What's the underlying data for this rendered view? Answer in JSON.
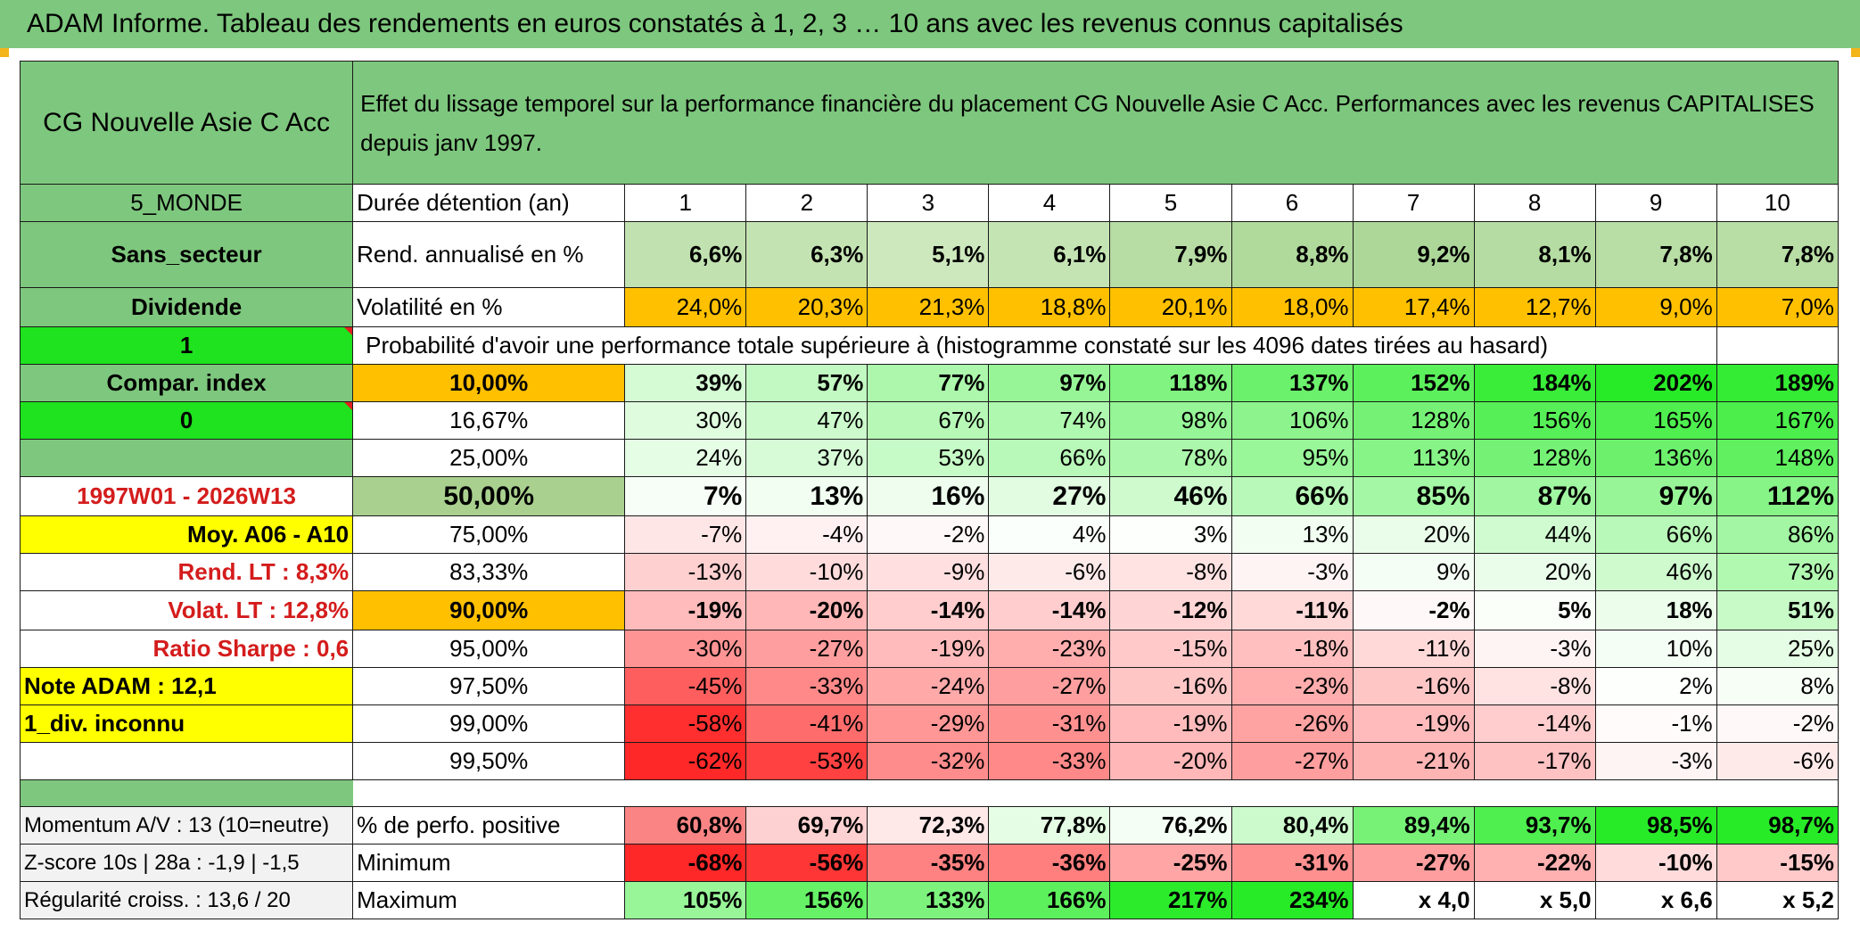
{
  "banner": "ADAM Informe. Tableau des rendements en euros constatés à 1, 2, 3 … 10 ans avec les revenus connus capitalisés",
  "fund_name": "CG Nouvelle Asie C Acc",
  "description": "Effet du lissage temporel sur la performance financière du placement CG Nouvelle Asie C Acc. Performances avec les revenus CAPITALISES depuis janv 1997.",
  "left_labels": {
    "zone": "5_MONDE",
    "secteur": "Sans_secteur",
    "dividende": "Dividende",
    "one": "1",
    "compar": "Compar. index",
    "zero": "0",
    "period": "1997W01 - 2026W13",
    "moy": "Moy. A06 - A10",
    "rend_lt": "Rend. LT :   8,3%",
    "volat_lt": "Volat. LT :   12,8%",
    "sharpe": "Ratio Sharpe :   0,6",
    "note": "Note ADAM : 12,1",
    "div": "1_div. inconnu",
    "momentum": "Momentum A/V : 13 (10=neutre)",
    "zscore": "Z-score 10s | 28a : -1,9 | -1,5",
    "regularite": "Régularité croiss. : 13,6 / 20"
  },
  "duration_label": "Durée détention (an)",
  "durations": [
    "1",
    "2",
    "3",
    "4",
    "5",
    "6",
    "7",
    "8",
    "9",
    "10"
  ],
  "rend_label": "Rend. annualisé en %",
  "rend": [
    "6,6%",
    "6,3%",
    "5,1%",
    "6,1%",
    "7,9%",
    "8,8%",
    "9,2%",
    "8,1%",
    "7,8%",
    "7,8%"
  ],
  "vol_label": "Volatilité en %",
  "vol": [
    "24,0%",
    "20,3%",
    "21,3%",
    "18,8%",
    "20,1%",
    "18,0%",
    "17,4%",
    "12,7%",
    "9,0%",
    "7,0%"
  ],
  "prob_label": "Probabilité d'avoir une performance totale supérieure à (histogramme constaté sur les 4096 dates tirées au hasard)",
  "prob_rows": [
    {
      "p": "10,00%",
      "v": [
        "39%",
        "57%",
        "77%",
        "97%",
        "118%",
        "137%",
        "152%",
        "184%",
        "202%",
        "189%"
      ]
    },
    {
      "p": "16,67%",
      "v": [
        "30%",
        "47%",
        "67%",
        "74%",
        "98%",
        "106%",
        "128%",
        "156%",
        "165%",
        "167%"
      ]
    },
    {
      "p": "25,00%",
      "v": [
        "24%",
        "37%",
        "53%",
        "66%",
        "78%",
        "95%",
        "113%",
        "128%",
        "136%",
        "148%"
      ]
    },
    {
      "p": "50,00%",
      "v": [
        "7%",
        "13%",
        "16%",
        "27%",
        "46%",
        "66%",
        "85%",
        "87%",
        "97%",
        "112%"
      ]
    },
    {
      "p": "75,00%",
      "v": [
        "-7%",
        "-4%",
        "-2%",
        "4%",
        "3%",
        "13%",
        "20%",
        "44%",
        "66%",
        "86%"
      ]
    },
    {
      "p": "83,33%",
      "v": [
        "-13%",
        "-10%",
        "-9%",
        "-6%",
        "-8%",
        "-3%",
        "9%",
        "20%",
        "46%",
        "73%"
      ]
    },
    {
      "p": "90,00%",
      "v": [
        "-19%",
        "-20%",
        "-14%",
        "-14%",
        "-12%",
        "-11%",
        "-2%",
        "5%",
        "18%",
        "51%"
      ]
    },
    {
      "p": "95,00%",
      "v": [
        "-30%",
        "-27%",
        "-19%",
        "-23%",
        "-15%",
        "-18%",
        "-11%",
        "-3%",
        "10%",
        "25%"
      ]
    },
    {
      "p": "97,50%",
      "v": [
        "-45%",
        "-33%",
        "-24%",
        "-27%",
        "-16%",
        "-23%",
        "-16%",
        "-8%",
        "2%",
        "8%"
      ]
    },
    {
      "p": "99,00%",
      "v": [
        "-58%",
        "-41%",
        "-29%",
        "-31%",
        "-19%",
        "-26%",
        "-19%",
        "-14%",
        "-1%",
        "-2%"
      ]
    },
    {
      "p": "99,50%",
      "v": [
        "-62%",
        "-53%",
        "-32%",
        "-33%",
        "-20%",
        "-27%",
        "-21%",
        "-17%",
        "-3%",
        "-6%"
      ]
    }
  ],
  "positive_label": "% de perfo. positive",
  "positive": [
    "60,8%",
    "69,7%",
    "72,3%",
    "77,8%",
    "76,2%",
    "80,4%",
    "89,4%",
    "93,7%",
    "98,5%",
    "98,7%"
  ],
  "minimum_label": "Minimum",
  "minimum": [
    "-68%",
    "-56%",
    "-35%",
    "-36%",
    "-25%",
    "-31%",
    "-27%",
    "-22%",
    "-10%",
    "-15%"
  ],
  "maximum_label": "Maximum",
  "maximum": [
    "105%",
    "156%",
    "133%",
    "166%",
    "217%",
    "234%",
    "x 4,0",
    "x 5,0",
    "x 6,6",
    "x 5,2"
  ],
  "colors": {
    "header_green": "#7ec77e",
    "bright_green": "#1ee31e",
    "yellow": "#ffff00",
    "orange": "#ffc000",
    "label_red": "#d41c1c"
  }
}
